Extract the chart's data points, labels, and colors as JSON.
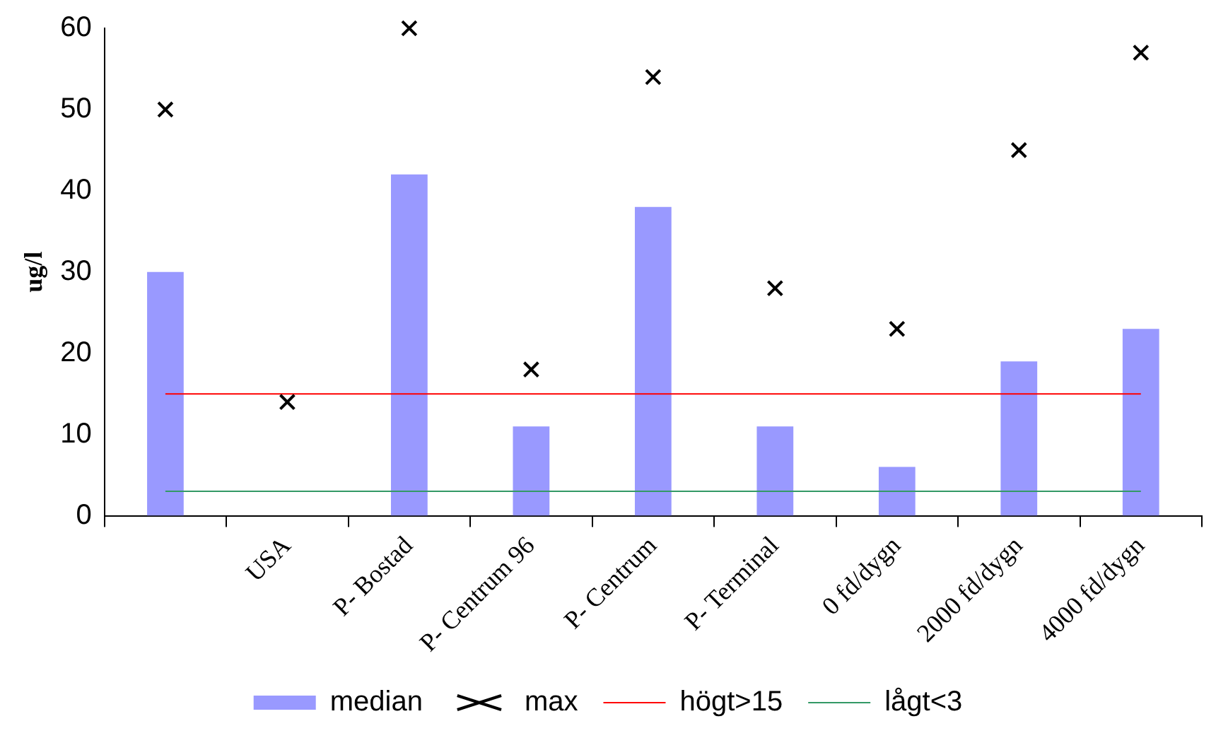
{
  "chart_data": {
    "type": "bar",
    "ylabel": "ug/l",
    "categories": [
      null,
      "USA",
      "P- Bostad",
      "P- Centrum 96",
      "P- Centrum",
      "P- Terminal",
      "0 fd/dygn",
      "2000 fd/dygn",
      "4000 fd/dygn"
    ],
    "series": [
      {
        "name": "median",
        "color": "#9999ff",
        "values": [
          30,
          null,
          42,
          11,
          38,
          11,
          6,
          19,
          23
        ]
      },
      {
        "name": "max",
        "type": "scatter",
        "marker": "cross",
        "color": "#000000",
        "values": [
          50,
          14,
          60,
          18,
          54,
          28,
          23,
          45,
          57
        ]
      },
      {
        "name": "högt>15",
        "type": "line",
        "marker": "none",
        "color": "#ff0000",
        "values": [
          15,
          15,
          15,
          15,
          15,
          15,
          15,
          15,
          15
        ]
      },
      {
        "name": "lågt<3",
        "type": "line",
        "marker": "none",
        "color": "#339966",
        "values": [
          3,
          3,
          3,
          3,
          3,
          3,
          3,
          3,
          3
        ]
      }
    ],
    "ylim": [
      0,
      60
    ],
    "yticks": [
      0,
      10,
      20,
      30,
      40,
      50,
      60
    ],
    "grid": false,
    "legend": "bottom"
  }
}
